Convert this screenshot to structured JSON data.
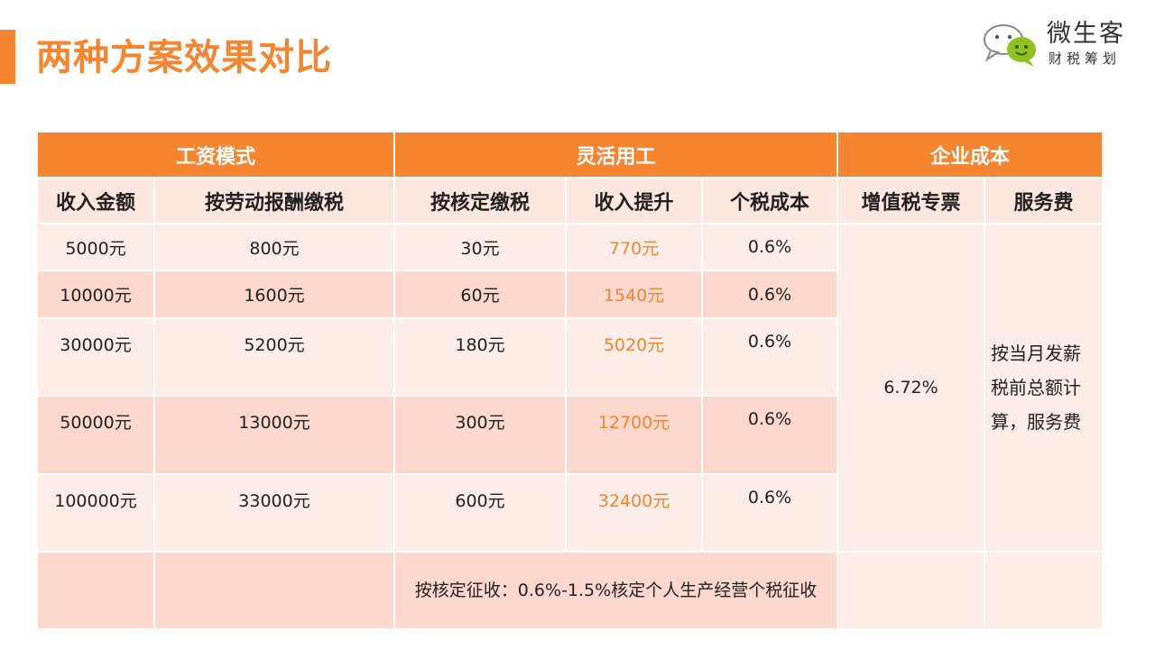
{
  "page": {
    "title": "两种方案效果对比"
  },
  "logo": {
    "name": "微生客",
    "subtitle": "财税筹划",
    "icon": "chat-bubbles-icon"
  },
  "table": {
    "group_headers": [
      "工资模式",
      "灵活用工",
      "企业成本"
    ],
    "columns": [
      "收入金额",
      "按劳动报酬缴税",
      "按核定缴税",
      "收入提升",
      "个税成本",
      "增值税专票",
      "服务费"
    ],
    "rows": [
      {
        "income": "5000元",
        "labor_tax": "800元",
        "assessed_tax": "30元",
        "increase": "770元",
        "iit_cost": "0.6%"
      },
      {
        "income": "10000元",
        "labor_tax": "1600元",
        "assessed_tax": "60元",
        "increase": "1540元",
        "iit_cost": "0.6%"
      },
      {
        "income": "30000元",
        "labor_tax": "5200元",
        "assessed_tax": "180元",
        "increase": "5020元",
        "iit_cost": "0.6%"
      },
      {
        "income": "50000元",
        "labor_tax": "13000元",
        "assessed_tax": "300元",
        "increase": "12700元",
        "iit_cost": "0.6%"
      },
      {
        "income": "100000元",
        "labor_tax": "33000元",
        "assessed_tax": "600元",
        "increase": "32400元",
        "iit_cost": "0.6%"
      }
    ],
    "vat_invoice": "6.72%",
    "service_fee": "按当月发薪税前总额计算，服务费",
    "note": "按核定征收：0.6%-1.5%核定个人生产经营个税征收"
  },
  "colors": {
    "accent": "#f7852f",
    "row_light": "#fdede8",
    "row_dark": "#fcd8cd"
  }
}
